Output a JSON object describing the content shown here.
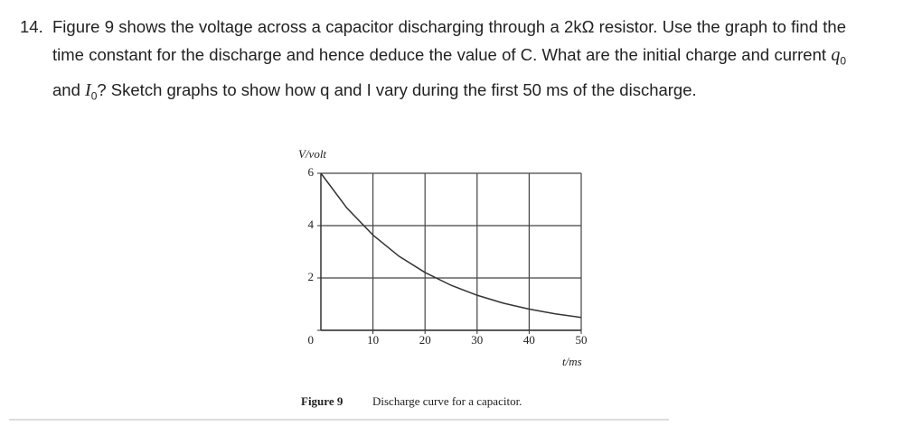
{
  "question": {
    "number": "14.",
    "text": [
      "Figure 9 shows the voltage across a capacitor discharging through a 2kΩ resistor. Use the graph to find the time constant for the discharge and hence deduce the value of C. What are the initial charge and current ",
      "q",
      "0",
      " and ",
      "I",
      "0",
      "? Sketch graphs to show how q and I vary during the first 50 ms of the discharge."
    ]
  },
  "chart_data": {
    "type": "line",
    "ylabel": "V/volt",
    "xlabel": "t/ms",
    "figure_label": "Figure 9",
    "caption": "Discharge curve for a capacitor.",
    "x": [
      0,
      5,
      10,
      15,
      20,
      25,
      30,
      35,
      40,
      45,
      50
    ],
    "series": [
      {
        "color": "#333333",
        "values": [
          6,
          4.67,
          3.64,
          2.83,
          2.21,
          1.72,
          1.34,
          1.04,
          0.81,
          0.63,
          0.49
        ]
      }
    ],
    "xlim": [
      0,
      50
    ],
    "ylim": [
      0,
      6
    ],
    "xticks": [
      10,
      20,
      30,
      40,
      50
    ],
    "yticks": [
      0,
      2,
      4,
      6
    ],
    "grid": true
  }
}
